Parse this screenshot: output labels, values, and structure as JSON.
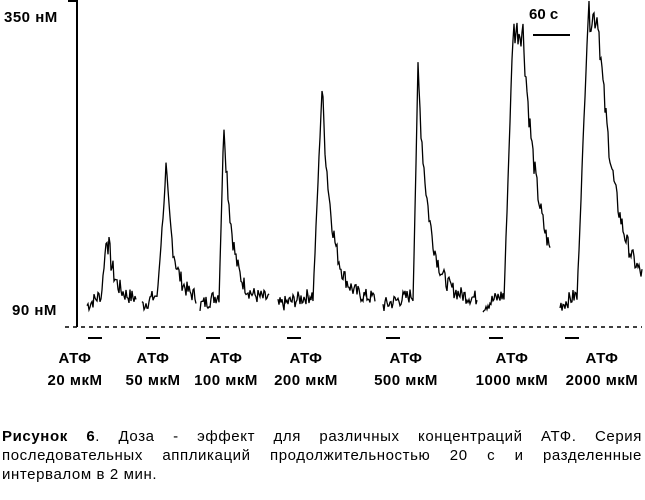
{
  "chart_data": {
    "type": "line",
    "title": "",
    "xlabel": "",
    "ylabel": "",
    "y_tick_labels": [
      "350 нМ",
      "90 нМ"
    ],
    "ylim": [
      90,
      350
    ],
    "scale_bar_label": "60 с",
    "baseline_style": "dashed",
    "line_color": "#000000",
    "stimuli": [
      {
        "agent": "АТФ",
        "concentration": "20 мкМ",
        "peak_nM": 160
      },
      {
        "agent": "АТФ",
        "concentration": "50 мкМ",
        "peak_nM": 213
      },
      {
        "agent": "АТФ",
        "concentration": "100 мкМ",
        "peak_nM": 263
      },
      {
        "agent": "АТФ",
        "concentration": "200 мкМ",
        "peak_nM": 290
      },
      {
        "agent": "АТФ",
        "concentration": "500 мкМ",
        "peak_nM": 305
      },
      {
        "agent": "АТФ",
        "concentration": "1000 мкМ",
        "peak_nM": 342
      },
      {
        "agent": "АТФ",
        "concentration": "2000 мкМ",
        "peak_nM": 355
      }
    ],
    "baseline_nM": 100
  },
  "caption": {
    "label": "Рисунок 6",
    "text": ". Доза - эффект для различных концентраций АТФ. Серия последовательных аппликаций продолжительностью 20 с и разделенные интервалом в 2 мин."
  }
}
